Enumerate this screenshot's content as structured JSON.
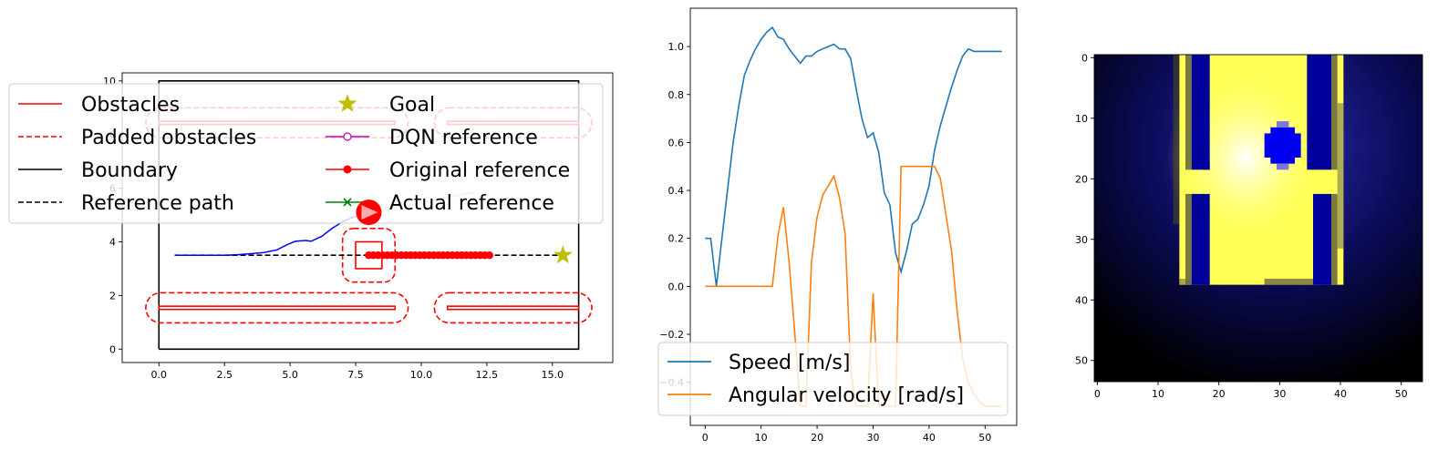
{
  "chart_data": [
    {
      "type": "line",
      "panel": "map",
      "xticks": [
        0.0,
        2.5,
        5.0,
        7.5,
        10.0,
        12.5,
        15.0
      ],
      "xtick_labels": [
        "0.0",
        "2.5",
        "5.0",
        "7.5",
        "10.0",
        "12.5",
        "15.0"
      ],
      "yticks": [
        0,
        2,
        4,
        6,
        8,
        10
      ],
      "ytick_labels": [
        "0",
        "2",
        "4",
        "6",
        "8",
        "10"
      ],
      "xlim": [
        -1.4,
        17.3
      ],
      "ylim": [
        -0.5,
        10.3
      ],
      "legend_position": "upper-left",
      "legend": [
        {
          "label": "Obstacles",
          "color": "#ff0000",
          "style": "solid",
          "marker": "none"
        },
        {
          "label": "Padded obstacles",
          "color": "#ff0000",
          "style": "dashed",
          "marker": "none"
        },
        {
          "label": "Boundary",
          "color": "#000000",
          "style": "solid",
          "marker": "none"
        },
        {
          "label": "Reference path",
          "color": "#000000",
          "style": "dashed",
          "marker": "none"
        },
        {
          "label": "Goal",
          "color": "#bfbf00",
          "style": "none",
          "marker": "star"
        },
        {
          "label": "DQN reference",
          "color": "#bf00bf",
          "style": "solid",
          "marker": "open-circle"
        },
        {
          "label": "Original reference",
          "color": "#ff0000",
          "style": "solid",
          "marker": "filled-circle"
        },
        {
          "label": "Actual reference",
          "color": "#008000",
          "style": "solid",
          "marker": "x"
        }
      ],
      "boundary": [
        [
          0,
          0
        ],
        [
          16,
          0
        ],
        [
          16,
          10
        ],
        [
          0,
          10
        ],
        [
          0,
          0
        ]
      ],
      "obstacles": [
        {
          "x0": 0,
          "x1": 9,
          "y0": 1.48,
          "y1": 1.6
        },
        {
          "x0": 11,
          "x1": 16,
          "y0": 1.48,
          "y1": 1.6
        },
        {
          "x0": 0,
          "x1": 9,
          "y0": 8.38,
          "y1": 8.5
        },
        {
          "x0": 11,
          "x1": 16,
          "y0": 8.38,
          "y1": 8.5
        }
      ],
      "padded_obstacles": [
        {
          "x0": -0.5,
          "x1": 9.5,
          "y0": 0.98,
          "y1": 2.1
        },
        {
          "x0": 10.5,
          "x1": 16.5,
          "y0": 0.98,
          "y1": 2.1
        },
        {
          "x0": -0.5,
          "x1": 9.5,
          "y0": 7.88,
          "y1": 9.0
        },
        {
          "x0": 10.5,
          "x1": 16.5,
          "y0": 7.88,
          "y1": 9.0
        }
      ],
      "dynamic_obstacle": {
        "x0": 7.5,
        "x1": 8.5,
        "y0": 3.0,
        "y1": 4.0
      },
      "dynamic_obstacle_padded": {
        "x0": 7.0,
        "x1": 9.0,
        "y0": 2.5,
        "y1": 4.5
      },
      "reference_path": [
        [
          0.6,
          3.5
        ],
        [
          15.4,
          3.5
        ]
      ],
      "goal": [
        15.4,
        3.5
      ],
      "original_reference": {
        "x_start": 8.0,
        "x_end": 12.6,
        "count": 27,
        "y": 3.5
      },
      "actual_path": [
        [
          0.6,
          3.5
        ],
        [
          1.5,
          3.5
        ],
        [
          2.5,
          3.5
        ],
        [
          3.0,
          3.52
        ],
        [
          3.5,
          3.56
        ],
        [
          4.0,
          3.6
        ],
        [
          4.5,
          3.7
        ],
        [
          4.9,
          3.9
        ],
        [
          5.2,
          4.02
        ],
        [
          5.6,
          4.05
        ],
        [
          5.8,
          4.02
        ],
        [
          6.2,
          4.2
        ],
        [
          6.6,
          4.5
        ],
        [
          7.0,
          4.75
        ],
        [
          7.4,
          4.92
        ],
        [
          7.8,
          5.02
        ],
        [
          8.1,
          5.05
        ]
      ],
      "faded_reference": [
        [
          8.4,
          5.15
        ],
        [
          9.0,
          5.3
        ],
        [
          9.5,
          5.35
        ],
        [
          10.0,
          5.45
        ],
        [
          10.5,
          5.55
        ],
        [
          11.0,
          5.65
        ],
        [
          11.5,
          5.75
        ],
        [
          12.0,
          5.85
        ]
      ],
      "robot": {
        "x": 8.0,
        "y": 5.1,
        "heading_deg": 0
      }
    },
    {
      "type": "line",
      "panel": "velocity",
      "xticks": [
        0,
        10,
        20,
        30,
        40,
        50
      ],
      "xtick_labels": [
        "0",
        "10",
        "20",
        "30",
        "40",
        "50"
      ],
      "yticks": [
        -0.4,
        -0.2,
        0.0,
        0.2,
        0.4,
        0.6,
        0.8,
        1.0
      ],
      "ytick_labels": [
        "−0.4",
        "−0.2",
        "0.0",
        "0.2",
        "0.4",
        "0.6",
        "0.8",
        "1.0"
      ],
      "xlim": [
        -2.65,
        55.65
      ],
      "ylim": [
        -0.58,
        1.16
      ],
      "legend_position": "lower-left",
      "series": [
        {
          "name": "Speed [m/s]",
          "color": "#1f77b4",
          "x": [
            0,
            1,
            2,
            3,
            4,
            5,
            6,
            7,
            8,
            9,
            10,
            11,
            12,
            13,
            14,
            15,
            16,
            17,
            18,
            19,
            20,
            21,
            22,
            23,
            24,
            25,
            26,
            27,
            28,
            29,
            30,
            31,
            32,
            33,
            34,
            35,
            36,
            37,
            38,
            39,
            40,
            41,
            42,
            43,
            44,
            45,
            46,
            47,
            48,
            49,
            50,
            51,
            52,
            53
          ],
          "y": [
            0.2,
            0.2,
            0.0,
            0.2,
            0.4,
            0.6,
            0.75,
            0.88,
            0.94,
            0.99,
            1.03,
            1.06,
            1.08,
            1.04,
            1.03,
            0.99,
            0.96,
            0.93,
            0.96,
            0.96,
            0.98,
            0.99,
            1.0,
            1.01,
            0.99,
            0.99,
            0.95,
            0.82,
            0.7,
            0.62,
            0.64,
            0.56,
            0.39,
            0.34,
            0.14,
            0.06,
            0.15,
            0.26,
            0.28,
            0.34,
            0.42,
            0.57,
            0.67,
            0.75,
            0.83,
            0.9,
            0.96,
            0.99,
            0.98,
            0.98,
            0.98,
            0.98,
            0.98,
            0.98
          ]
        },
        {
          "name": "Angular velocity [rad/s]",
          "color": "#ff7f0e",
          "x": [
            0,
            1,
            2,
            3,
            4,
            5,
            6,
            7,
            8,
            9,
            10,
            11,
            12,
            13,
            14,
            15,
            16,
            17,
            18,
            19,
            20,
            21,
            22,
            23,
            24,
            25,
            26,
            27,
            28,
            29,
            30,
            31,
            32,
            33,
            34,
            35,
            36,
            37,
            38,
            39,
            40,
            41,
            42,
            43,
            44,
            45,
            46,
            47,
            48,
            49,
            50,
            51,
            52,
            53
          ],
          "y": [
            0,
            0,
            0,
            0,
            0,
            0,
            0,
            0,
            0,
            0,
            0,
            0,
            0,
            0.21,
            0.33,
            0.1,
            -0.19,
            -0.5,
            -0.5,
            0.1,
            0.29,
            0.38,
            0.42,
            0.46,
            0.37,
            0.22,
            -0.35,
            -0.5,
            -0.5,
            -0.5,
            -0.03,
            -0.5,
            -0.5,
            -0.5,
            -0.5,
            0.5,
            0.5,
            0.5,
            0.5,
            0.5,
            0.5,
            0.5,
            0.45,
            0.3,
            0.15,
            -0.1,
            -0.3,
            -0.4,
            -0.45,
            -0.48,
            -0.5,
            -0.5,
            -0.5,
            -0.5
          ]
        }
      ]
    },
    {
      "type": "heatmap",
      "panel": "occupancy",
      "xticks": [
        0,
        10,
        20,
        30,
        40,
        50
      ],
      "xtick_labels": [
        "0",
        "10",
        "20",
        "30",
        "40",
        "50"
      ],
      "yticks": [
        0,
        10,
        20,
        30,
        40,
        50
      ],
      "ytick_labels": [
        "0",
        "10",
        "20",
        "30",
        "40",
        "50"
      ],
      "size": [
        54,
        54
      ],
      "colors": {
        "free": "#ffff55",
        "glow": "#ffffff",
        "obstacle": "#00009c",
        "robot": "#0000ee",
        "background": "#000000"
      }
    }
  ]
}
